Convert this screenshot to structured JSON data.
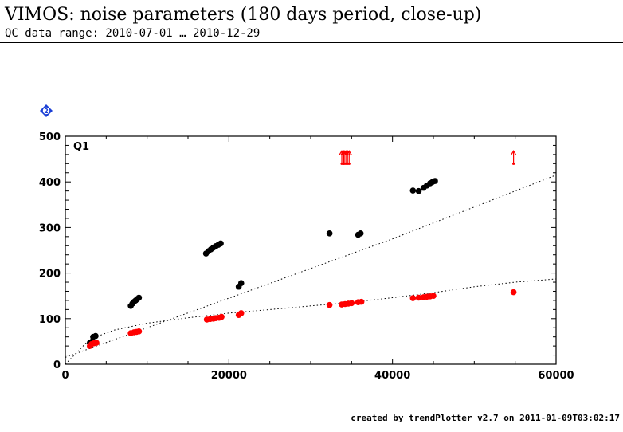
{
  "header": {
    "title": "VIMOS: noise parameters (180 days period, close-up)",
    "subtitle": "QC data range: 2010-07-01 … 2010-12-29"
  },
  "help_icon": {
    "icon": "help-diamond-icon",
    "label": "2",
    "color": "#1a3fd6"
  },
  "footer": "created by trendPlotter v2.7 on 2011-01-09T03:02:17",
  "chart_data": {
    "type": "scatter",
    "panel_label": "Q1",
    "xlim": [
      0,
      60000
    ],
    "ylim": [
      0,
      500
    ],
    "x_ticks": [
      0,
      20000,
      40000,
      60000
    ],
    "y_ticks": [
      0,
      100,
      200,
      300,
      400,
      500
    ],
    "grid": false,
    "colors": {
      "series_a": "#000000",
      "series_b": "#ff0000",
      "axes": "#000000",
      "trend": "#000000"
    },
    "series": [
      {
        "color": "#000000",
        "points": [
          [
            3000,
            47
          ],
          [
            3300,
            50
          ],
          [
            3400,
            60
          ],
          [
            3700,
            62
          ],
          [
            8000,
            128
          ],
          [
            8200,
            133
          ],
          [
            8400,
            137
          ],
          [
            8600,
            140
          ],
          [
            8800,
            143
          ],
          [
            9000,
            146
          ],
          [
            17200,
            243
          ],
          [
            17500,
            248
          ],
          [
            17800,
            252
          ],
          [
            18100,
            256
          ],
          [
            18400,
            259
          ],
          [
            18700,
            262
          ],
          [
            19000,
            265
          ],
          [
            21200,
            170
          ],
          [
            21500,
            178
          ],
          [
            32300,
            287
          ],
          [
            35800,
            284
          ],
          [
            36100,
            287
          ],
          [
            42500,
            381
          ],
          [
            43200,
            380
          ],
          [
            43800,
            387
          ],
          [
            44200,
            392
          ],
          [
            44600,
            397
          ],
          [
            44900,
            400
          ],
          [
            45200,
            402
          ]
        ]
      },
      {
        "color": "#ff0000",
        "points": [
          [
            3000,
            40
          ],
          [
            3200,
            44
          ],
          [
            3500,
            46
          ],
          [
            3800,
            47
          ],
          [
            8000,
            68
          ],
          [
            8400,
            70
          ],
          [
            8700,
            71
          ],
          [
            9000,
            72
          ],
          [
            17300,
            98
          ],
          [
            17700,
            99
          ],
          [
            18100,
            100
          ],
          [
            18400,
            101
          ],
          [
            18800,
            102
          ],
          [
            19100,
            104
          ],
          [
            21200,
            108
          ],
          [
            21500,
            112
          ],
          [
            32300,
            130
          ],
          [
            33800,
            131
          ],
          [
            34200,
            132
          ],
          [
            34600,
            133
          ],
          [
            35000,
            134
          ],
          [
            35800,
            136
          ],
          [
            36200,
            137
          ],
          [
            42500,
            145
          ],
          [
            43200,
            146
          ],
          [
            43800,
            147
          ],
          [
            44200,
            148
          ],
          [
            44600,
            149
          ],
          [
            45000,
            150
          ],
          [
            54800,
            158
          ]
        ]
      }
    ],
    "out_of_range": {
      "color": "#ff0000",
      "markers": [
        {
          "x": 33800,
          "y": 440
        },
        {
          "x": 34000,
          "y": 440
        },
        {
          "x": 34100,
          "y": 440
        },
        {
          "x": 34300,
          "y": 440
        },
        {
          "x": 34500,
          "y": 440
        },
        {
          "x": 34700,
          "y": 440
        },
        {
          "x": 54800,
          "y": 440
        }
      ]
    },
    "trend_lines": [
      {
        "style": "dotted",
        "points": [
          [
            0,
            15
          ],
          [
            10000,
            80
          ],
          [
            20000,
            145
          ],
          [
            30000,
            210
          ],
          [
            40000,
            275
          ],
          [
            50000,
            345
          ],
          [
            60000,
            415
          ]
        ]
      },
      {
        "style": "dotted",
        "points": [
          [
            0,
            0
          ],
          [
            3000,
            55
          ],
          [
            6000,
            75
          ],
          [
            10000,
            90
          ],
          [
            15000,
            102
          ],
          [
            20000,
            112
          ],
          [
            25000,
            120
          ],
          [
            30000,
            128
          ],
          [
            35000,
            136
          ],
          [
            40000,
            146
          ],
          [
            45000,
            157
          ],
          [
            50000,
            170
          ],
          [
            55000,
            180
          ],
          [
            60000,
            187
          ]
        ]
      }
    ]
  }
}
